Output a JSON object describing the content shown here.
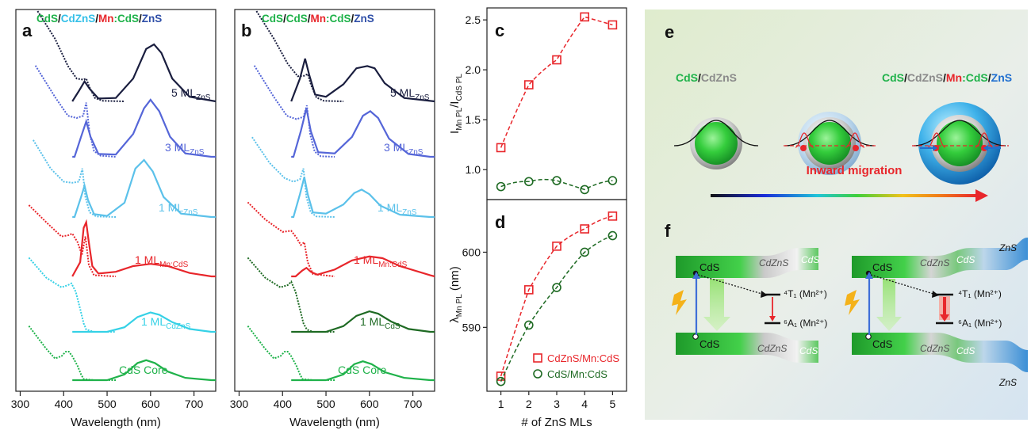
{
  "panels": {
    "a": {
      "letter": "a",
      "header_parts": [
        {
          "text": "CdS",
          "color": "#1fb24a"
        },
        {
          "text": "/",
          "color": "#111111"
        },
        {
          "text": "CdZnS",
          "color": "#35c0e8"
        },
        {
          "text": "/",
          "color": "#111111"
        },
        {
          "text": "Mn",
          "color": "#e8262b"
        },
        {
          "text": ":CdS",
          "color": "#1fb24a"
        },
        {
          "text": "/",
          "color": "#111111"
        },
        {
          "text": "ZnS",
          "color": "#2f4fa8"
        }
      ],
      "xlabel": "Wavelength (nm)",
      "xticks": [
        "300",
        "400",
        "500",
        "600",
        "700"
      ]
    },
    "b": {
      "letter": "b",
      "header_parts": [
        {
          "text": "CdS",
          "color": "#1fb24a"
        },
        {
          "text": "/",
          "color": "#111111"
        },
        {
          "text": "CdS",
          "color": "#1fb24a"
        },
        {
          "text": "/",
          "color": "#111111"
        },
        {
          "text": "Mn",
          "color": "#e8262b"
        },
        {
          "text": ":CdS",
          "color": "#1fb24a"
        },
        {
          "text": "/",
          "color": "#111111"
        },
        {
          "text": "ZnS",
          "color": "#2f4fa8"
        }
      ],
      "xlabel": "Wavelength (nm)",
      "xticks": [
        "300",
        "400",
        "500",
        "600",
        "700"
      ]
    },
    "c": {
      "letter": "c"
    },
    "d": {
      "letter": "d"
    },
    "e": {
      "letter": "e",
      "left_label_parts": [
        {
          "text": "CdS",
          "color": "#1fb24a"
        },
        {
          "text": "/",
          "color": "#111111"
        },
        {
          "text": "CdZnS",
          "color": "#8a8a8a"
        }
      ],
      "right_label_parts": [
        {
          "text": "CdS",
          "color": "#1fb24a"
        },
        {
          "text": "/",
          "color": "#111111"
        },
        {
          "text": "CdZnS",
          "color": "#8a8a8a"
        },
        {
          "text": "/",
          "color": "#111111"
        },
        {
          "text": "Mn",
          "color": "#e8262b"
        },
        {
          "text": ":CdS",
          "color": "#1fb24a"
        },
        {
          "text": "/",
          "color": "#111111"
        },
        {
          "text": "ZnS",
          "color": "#1f6fd0"
        }
      ],
      "migration_label": "Inward migration"
    },
    "f": {
      "letter": "f",
      "left": {
        "cds_top": "CdS",
        "cdzns_top": "CdZnS",
        "cds_end_top": "CdS",
        "cds_bottom": "CdS",
        "cdzns_bottom": "CdZnS",
        "cds_end_bottom": "CdS",
        "level_4t1": "⁴T₁ (Mn²⁺)",
        "level_6a1": "⁶A₁ (Mn²⁺)"
      },
      "right": {
        "cds_top": "CdS",
        "cdzns_top": "CdZnS",
        "cds_end_top": "CdS",
        "zns_top": "ZnS",
        "cds_bottom": "CdS",
        "cdzns_bottom": "CdZnS",
        "cds_end_bottom": "CdS",
        "zns_bottom": "ZnS",
        "level_4t1": "⁴T₁ (Mn²⁺)",
        "level_6a1": "⁶A₁ (Mn²⁺)"
      }
    }
  },
  "chart_data": [
    {
      "panel": "a",
      "type": "line",
      "title": "CdS/CdZnS/Mn:CdS/ZnS",
      "xlabel": "Wavelength (nm)",
      "xlim": [
        300,
        750
      ],
      "series": [
        {
          "name": "CdS Core",
          "label_main": "CdS Core",
          "label_sub": "",
          "color": "#1fb24a",
          "abs_x": [
            320,
            360,
            380,
            395,
            405,
            412,
            420,
            432,
            440,
            446,
            470,
            520
          ],
          "abs_y": [
            0.95,
            0.55,
            0.38,
            0.42,
            0.5,
            0.5,
            0.42,
            0.25,
            0.1,
            0.02,
            0.0,
            0.0
          ],
          "pl_x": [
            500,
            540,
            570,
            590,
            610,
            640,
            680,
            740
          ],
          "pl_y": [
            0.0,
            0.1,
            0.3,
            0.35,
            0.3,
            0.15,
            0.04,
            0.0
          ]
        },
        {
          "name": "1 ML CdZnS",
          "label_main": "1 ML",
          "label_sub": "CdZnS",
          "color": "#35d1e6",
          "abs_x": [
            320,
            360,
            395,
            410,
            418,
            428,
            438,
            446,
            452,
            470,
            520
          ],
          "abs_y": [
            1.3,
            0.95,
            0.78,
            0.82,
            0.85,
            0.7,
            0.4,
            0.15,
            0.04,
            0.0,
            0.0
          ],
          "pl_x": [
            500,
            540,
            570,
            600,
            620,
            650,
            690,
            740
          ],
          "pl_y": [
            0.0,
            0.08,
            0.26,
            0.34,
            0.3,
            0.17,
            0.05,
            0.0
          ]
        },
        {
          "name": "1 ML Mn:CdS",
          "label_main": "1 ML",
          "label_sub": "Mn:CdS",
          "color": "#e8262b",
          "abs_x": [
            320,
            360,
            395,
            410,
            420,
            432,
            442,
            450,
            458,
            470,
            520
          ],
          "abs_y": [
            1.25,
            0.95,
            0.7,
            0.72,
            0.75,
            0.6,
            0.38,
            0.7,
            0.2,
            0.02,
            0.0
          ],
          "pl_x": [
            420,
            438,
            446,
            452,
            458,
            466,
            480,
            520,
            560,
            600,
            640,
            690,
            740
          ],
          "pl_y": [
            0.0,
            0.25,
            0.85,
            0.95,
            0.6,
            0.18,
            0.05,
            0.08,
            0.18,
            0.22,
            0.18,
            0.06,
            0.0
          ]
        },
        {
          "name": "1 ML ZnS",
          "label_main": "1 ML",
          "label_sub": "ZnS",
          "color": "#5bc1ea",
          "abs_x": [
            330,
            370,
            400,
            420,
            435,
            443,
            450,
            460,
            475,
            520
          ],
          "abs_y": [
            1.35,
            0.85,
            0.62,
            0.6,
            0.62,
            0.85,
            0.35,
            0.08,
            0.01,
            0.0
          ],
          "pl_x": [
            425,
            440,
            448,
            456,
            470,
            500,
            540,
            565,
            585,
            605,
            630,
            670,
            740
          ],
          "pl_y": [
            0.0,
            0.35,
            0.55,
            0.3,
            0.05,
            0.02,
            0.25,
            0.85,
            1.0,
            0.8,
            0.35,
            0.06,
            0.0
          ]
        },
        {
          "name": "3 ML ZnS",
          "label_main": "3 ML",
          "label_sub": "ZnS",
          "color": "#5566d8",
          "abs_x": [
            335,
            380,
            410,
            430,
            445,
            452,
            460,
            470,
            485,
            520
          ],
          "abs_y": [
            1.6,
            1.05,
            0.72,
            0.68,
            0.72,
            0.95,
            0.4,
            0.1,
            0.02,
            0.0
          ],
          "pl_x": [
            425,
            440,
            452,
            462,
            480,
            520,
            560,
            585,
            600,
            620,
            645,
            680,
            740
          ],
          "pl_y": [
            0.0,
            0.35,
            0.62,
            0.35,
            0.05,
            0.04,
            0.4,
            0.85,
            1.0,
            0.8,
            0.35,
            0.06,
            0.0
          ]
        },
        {
          "name": "5 ML ZnS",
          "label_main": "5 ML",
          "label_sub": "ZnS",
          "color": "#1a1e3f",
          "abs_x": [
            340,
            380,
            410,
            430,
            445,
            452,
            460,
            472,
            490,
            540
          ],
          "abs_y": [
            1.7,
            1.1,
            0.62,
            0.4,
            0.38,
            0.4,
            0.24,
            0.06,
            0.01,
            0.0
          ],
          "pl_x": [
            420,
            435,
            448,
            460,
            480,
            520,
            560,
            590,
            608,
            625,
            650,
            690,
            750
          ],
          "pl_y": [
            0.0,
            0.18,
            0.35,
            0.22,
            0.05,
            0.06,
            0.4,
            0.92,
            1.0,
            0.85,
            0.4,
            0.08,
            0.0
          ]
        }
      ]
    },
    {
      "panel": "b",
      "type": "line",
      "title": "CdS/CdS/Mn:CdS/ZnS",
      "xlabel": "Wavelength (nm)",
      "xlim": [
        300,
        750
      ],
      "series": [
        {
          "name": "CdS Core",
          "label_main": "CdS Core",
          "label_sub": "",
          "color": "#1fb24a",
          "abs_x": [
            320,
            360,
            380,
            395,
            405,
            412,
            420,
            432,
            440,
            446,
            470,
            520
          ],
          "abs_y": [
            0.95,
            0.55,
            0.38,
            0.42,
            0.5,
            0.5,
            0.42,
            0.25,
            0.1,
            0.02,
            0.0,
            0.0
          ],
          "pl_x": [
            500,
            540,
            565,
            585,
            605,
            635,
            680,
            740
          ],
          "pl_y": [
            0.0,
            0.1,
            0.28,
            0.33,
            0.28,
            0.14,
            0.04,
            0.0
          ]
        },
        {
          "name": "1 ML CdS",
          "label_main": "1 ML",
          "label_sub": "CdS",
          "color": "#1e6a23",
          "abs_x": [
            320,
            360,
            395,
            412,
            420,
            430,
            440,
            448,
            456,
            470,
            520
          ],
          "abs_y": [
            1.3,
            0.95,
            0.78,
            0.82,
            0.88,
            0.7,
            0.4,
            0.15,
            0.04,
            0.0,
            0.0
          ],
          "pl_x": [
            500,
            540,
            570,
            600,
            620,
            650,
            690,
            740
          ],
          "pl_y": [
            0.0,
            0.1,
            0.28,
            0.36,
            0.32,
            0.18,
            0.05,
            0.0
          ]
        },
        {
          "name": "1 ML Mn:CdS",
          "label_main": "1 ML",
          "label_sub": "Mn:CdS",
          "color": "#e8262b",
          "abs_x": [
            320,
            360,
            400,
            420,
            432,
            442,
            450,
            458,
            470,
            520
          ],
          "abs_y": [
            1.3,
            1.0,
            0.78,
            0.8,
            0.68,
            0.55,
            0.6,
            0.25,
            0.04,
            0.0
          ],
          "pl_x": [
            430,
            445,
            455,
            465,
            480,
            520,
            560,
            600,
            630,
            670,
            740
          ],
          "pl_y": [
            0.0,
            0.1,
            0.15,
            0.08,
            0.03,
            0.12,
            0.28,
            0.35,
            0.32,
            0.18,
            0.02
          ]
        },
        {
          "name": "1 ML ZnS",
          "label_main": "1 ML",
          "label_sub": "ZnS",
          "color": "#5bc1ea",
          "abs_x": [
            330,
            370,
            405,
            425,
            440,
            448,
            455,
            465,
            478,
            520
          ],
          "abs_y": [
            1.4,
            0.95,
            0.68,
            0.62,
            0.66,
            0.85,
            0.35,
            0.08,
            0.01,
            0.0
          ],
          "pl_x": [
            425,
            440,
            450,
            458,
            470,
            500,
            540,
            565,
            582,
            600,
            625,
            670,
            740
          ],
          "pl_y": [
            0.0,
            0.4,
            0.7,
            0.4,
            0.08,
            0.06,
            0.22,
            0.42,
            0.48,
            0.4,
            0.2,
            0.04,
            0.0
          ]
        },
        {
          "name": "3 ML ZnS",
          "label_main": "3 ML",
          "label_sub": "ZnS",
          "color": "#5566d8",
          "abs_x": [
            335,
            380,
            410,
            432,
            448,
            456,
            464,
            474,
            488,
            520
          ],
          "abs_y": [
            1.6,
            1.05,
            0.72,
            0.66,
            0.7,
            0.9,
            0.38,
            0.09,
            0.01,
            0.0
          ],
          "pl_x": [
            425,
            442,
            455,
            465,
            482,
            520,
            560,
            585,
            602,
            620,
            645,
            690,
            740
          ],
          "pl_y": [
            0.0,
            0.45,
            0.85,
            0.45,
            0.08,
            0.06,
            0.35,
            0.72,
            0.8,
            0.68,
            0.32,
            0.05,
            0.0
          ]
        },
        {
          "name": "5 ML ZnS",
          "label_main": "5 ML",
          "label_sub": "ZnS",
          "color": "#1a1e3f",
          "abs_x": [
            340,
            380,
            412,
            435,
            450,
            458,
            466,
            478,
            495,
            540
          ],
          "abs_y": [
            1.7,
            1.1,
            0.66,
            0.44,
            0.45,
            0.48,
            0.28,
            0.07,
            0.01,
            0.0
          ],
          "pl_x": [
            420,
            440,
            452,
            462,
            475,
            500,
            540,
            570,
            595,
            612,
            635,
            680,
            750
          ],
          "pl_y": [
            0.0,
            0.4,
            0.75,
            0.45,
            0.12,
            0.08,
            0.3,
            0.58,
            0.62,
            0.58,
            0.32,
            0.06,
            0.0
          ]
        }
      ]
    },
    {
      "panel": "c",
      "type": "scatter",
      "ylabel_main": "I",
      "ylabel_sub1": "Mn PL",
      "ylabel_mid": "/I",
      "ylabel_sub2": "CdS PL",
      "xlim": [
        0.5,
        5.5
      ],
      "ylim": [
        0.7,
        2.62
      ],
      "yticks": [
        1.0,
        1.5,
        2.0,
        2.5
      ],
      "series": [
        {
          "name": "CdZnS/Mn:CdS",
          "color": "#e8262b",
          "marker": "square",
          "x": [
            1,
            2,
            3,
            4,
            5
          ],
          "y": [
            1.22,
            1.85,
            2.1,
            2.53,
            2.45
          ]
        },
        {
          "name": "CdS/Mn:CdS",
          "color": "#1e6a23",
          "marker": "circle",
          "x": [
            1,
            2,
            3,
            4,
            5
          ],
          "y": [
            0.83,
            0.88,
            0.89,
            0.8,
            0.89
          ]
        }
      ]
    },
    {
      "panel": "d",
      "type": "scatter",
      "xlabel": "# of ZnS MLs",
      "ylabel_main": "λ",
      "ylabel_sub1": "Mn PL",
      "ylabel_tail": " (nm)",
      "xlim": [
        0.5,
        5.5
      ],
      "ylim": [
        581.5,
        607.0
      ],
      "xticks": [
        1,
        2,
        3,
        4,
        5
      ],
      "yticks": [
        590,
        600
      ],
      "legend": "bottom-right",
      "series": [
        {
          "name": "CdZnS/Mn:CdS",
          "color": "#e8262b",
          "marker": "square",
          "x": [
            1,
            2,
            3,
            4,
            5
          ],
          "y": [
            583.5,
            595.0,
            600.8,
            603.1,
            604.8
          ]
        },
        {
          "name": "CdS/Mn:CdS",
          "color": "#1e6a23",
          "marker": "circle",
          "x": [
            1,
            2,
            3,
            4,
            5
          ],
          "y": [
            582.8,
            590.3,
            595.3,
            600.0,
            602.2
          ]
        }
      ]
    }
  ]
}
